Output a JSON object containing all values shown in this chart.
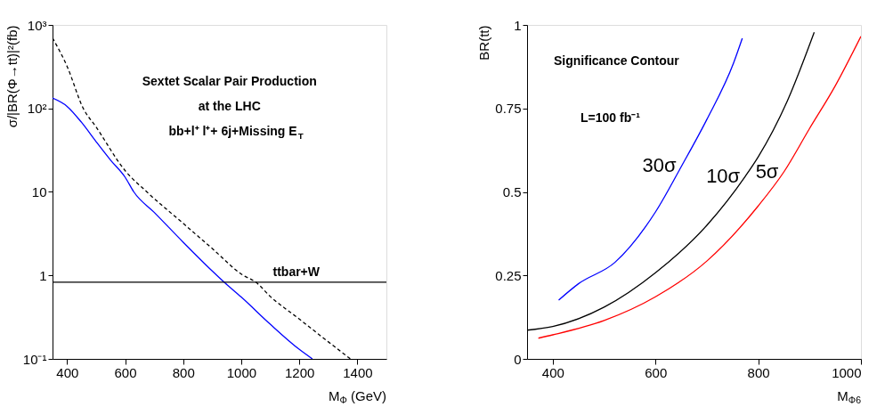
{
  "chart_data": [
    {
      "type": "line",
      "xlabel": "M$_{Φ}$ (GeV)",
      "ylabel": "σ/|BR(Φ→tt)|²(fb)",
      "log": "y",
      "grid": false,
      "legend": false,
      "marker": "none",
      "xlim": [
        350,
        1500
      ],
      "xticks": [
        400,
        600,
        800,
        1000,
        1200,
        1400
      ],
      "ylim": [
        0.1,
        1000
      ],
      "yticks": [
        {
          "value": 0.1,
          "label": "10⁻¹"
        },
        1,
        10,
        {
          "value": 100,
          "label": "10²"
        },
        {
          "value": 1000,
          "label": "10³"
        }
      ],
      "series": [
        {
          "color": "#0000ff",
          "line_style": "solid",
          "x": [
            350,
            400,
            450,
            500,
            550,
            600,
            630,
            700,
            800,
            900,
            941,
            1000,
            1100,
            1200,
            1245
          ],
          "values": [
            133,
            106,
            68,
            40,
            24,
            15,
            10,
            5.7,
            2.5,
            1.13,
            0.83,
            0.55,
            0.26,
            0.13,
            0.1
          ]
        },
        {
          "color": "#000000",
          "line_style": "dashed",
          "x": [
            350,
            400,
            456,
            500,
            600,
            675,
            800,
            900,
            1007,
            1050,
            1100,
            1200,
            1300,
            1376
          ],
          "values": [
            700,
            320,
            100,
            60,
            18,
            10,
            4.2,
            2.1,
            1,
            0.83,
            0.56,
            0.3,
            0.16,
            0.1
          ]
        }
      ],
      "ref_lines": [
        {
          "axis": "y",
          "value": 0.83,
          "label": "ttbar+W",
          "color": "#000000"
        }
      ],
      "annotations": [
        "Sextet Scalar Pair Production",
        "at the LHC",
        "bb+l⁺ l⁺+ 6j+Missing E$_{T}$"
      ]
    },
    {
      "type": "line",
      "xlabel": "M$_{Φ6}$",
      "ylabel": "BR(tt)",
      "grid": false,
      "legend": false,
      "marker": "none",
      "xlim": [
        350,
        1000
      ],
      "xticks": [
        400,
        600,
        800,
        1000
      ],
      "ylim": [
        0,
        1
      ],
      "yticks": [
        0,
        0.25,
        0.5,
        0.75,
        1
      ],
      "series": [
        {
          "name": "30σ",
          "color": "#0000ff",
          "x": [
            411.5,
            450,
            521,
            600,
            651,
            700,
            752,
            769
          ],
          "values": [
            0.176,
            0.225,
            0.289,
            0.44,
            0.578,
            0.717,
            0.886,
            0.96
          ]
        },
        {
          "name": "10σ",
          "color": "#000000",
          "x": [
            350,
            400,
            500,
            600,
            700,
            775,
            800,
            856,
            909
          ],
          "values": [
            0.086,
            0.097,
            0.155,
            0.258,
            0.4,
            0.547,
            0.605,
            0.77,
            0.978
          ]
        },
        {
          "name": "5σ",
          "color": "#ff0000",
          "x": [
            372,
            400,
            500,
            600,
            700,
            800,
            850,
            900,
            949,
            1000
          ],
          "values": [
            0.062,
            0.072,
            0.115,
            0.186,
            0.293,
            0.458,
            0.56,
            0.69,
            0.815,
            0.966
          ]
        }
      ],
      "annotations": [
        "Significance Contour",
        "L=100 fb⁻¹"
      ]
    }
  ]
}
